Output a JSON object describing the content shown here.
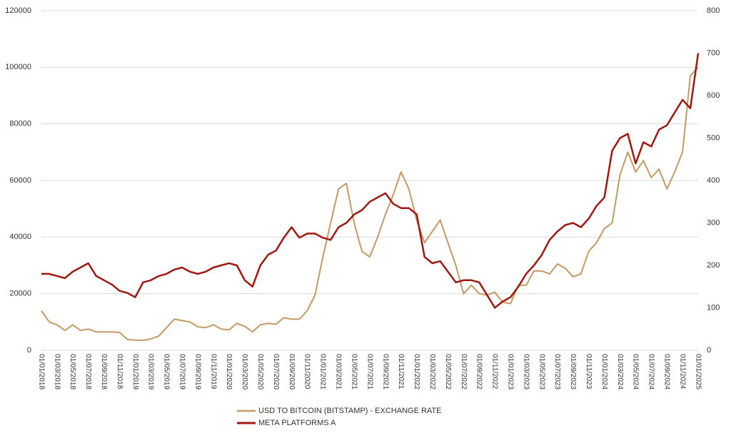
{
  "chart_data": {
    "type": "line",
    "categories": [
      "01/01/2018",
      null,
      "01/03/2018",
      null,
      "01/05/2018",
      null,
      "01/07/2018",
      null,
      "01/09/2018",
      null,
      "01/11/2018",
      null,
      "01/01/2019",
      null,
      "01/03/2019",
      null,
      "01/05/2019",
      null,
      "01/07/2019",
      null,
      "01/09/2019",
      null,
      "01/11/2019",
      null,
      "01/01/2020",
      null,
      "01/03/2020",
      null,
      "01/05/2020",
      null,
      "01/07/2020",
      null,
      "01/09/2020",
      null,
      "01/11/2020",
      null,
      "01/01/2021",
      null,
      "01/03/2021",
      null,
      "01/05/2021",
      null,
      "01/07/2021",
      null,
      "01/09/2021",
      null,
      "01/11/2021",
      null,
      "01/01/2022",
      null,
      "01/03/2022",
      null,
      "01/05/2022",
      null,
      "01/07/2022",
      null,
      "01/09/2022",
      null,
      "01/11/2022",
      null,
      "01/01/2023",
      null,
      "01/03/2023",
      null,
      "01/05/2023",
      null,
      "01/07/2023",
      null,
      "01/09/2023",
      null,
      "01/11/2023",
      null,
      "01/01/2024",
      null,
      "01/03/2024",
      null,
      "01/05/2024",
      null,
      "01/07/2024",
      null,
      "01/09/2024",
      null,
      "01/11/2024",
      null,
      "01/01/2025"
    ],
    "series": [
      {
        "name": "USD TO BITCOIN (BITSTAMP) - EXCHANGE RATE",
        "color": "#c49a64",
        "values": [
          14000,
          10000,
          9000,
          7000,
          9000,
          7000,
          7500,
          6500,
          6500,
          6500,
          6300,
          3800,
          3600,
          3500,
          4000,
          5000,
          8000,
          11000,
          10500,
          10000,
          8300,
          8000,
          9000,
          7500,
          7200,
          9500,
          8500,
          6500,
          9000,
          9500,
          9200,
          11500,
          11000,
          11000,
          14000,
          19500,
          33000,
          45000,
          57000,
          59000,
          45000,
          35000,
          33000,
          40000,
          48000,
          55000,
          63000,
          57000,
          46000,
          38000,
          42000,
          46000,
          38000,
          30000,
          20000,
          23000,
          20000,
          19500,
          20500,
          17000,
          16500,
          23000,
          23000,
          28000,
          28000,
          27000,
          30500,
          29000,
          26000,
          27000,
          35000,
          38000,
          43000,
          45000,
          62000,
          70000,
          63000,
          67000,
          61000,
          64000,
          57000,
          63000,
          70000,
          97000,
          100000
        ]
      },
      {
        "name": "META PLATFORMS A",
        "color": "#a0180f",
        "axis": "y2",
        "values": [
          180,
          180,
          175,
          170,
          185,
          195,
          205,
          175,
          165,
          155,
          140,
          135,
          125,
          160,
          165,
          175,
          180,
          190,
          195,
          185,
          180,
          185,
          195,
          200,
          205,
          200,
          165,
          150,
          200,
          225,
          235,
          265,
          290,
          265,
          275,
          275,
          265,
          260,
          290,
          300,
          320,
          330,
          350,
          360,
          370,
          345,
          335,
          335,
          320,
          220,
          205,
          210,
          185,
          160,
          165,
          165,
          160,
          130,
          100,
          115,
          125,
          150,
          180,
          200,
          225,
          260,
          280,
          295,
          300,
          290,
          310,
          340,
          360,
          470,
          500,
          510,
          440,
          490,
          480,
          520,
          530,
          560,
          590,
          570,
          700
        ]
      }
    ],
    "ylim": [
      0,
      120000
    ],
    "yticks": [
      0,
      20000,
      40000,
      60000,
      80000,
      100000,
      120000
    ],
    "y2lim": [
      0,
      800
    ],
    "y2ticks": [
      0,
      100,
      200,
      300,
      400,
      500,
      600,
      700,
      800
    ],
    "grid": true
  }
}
